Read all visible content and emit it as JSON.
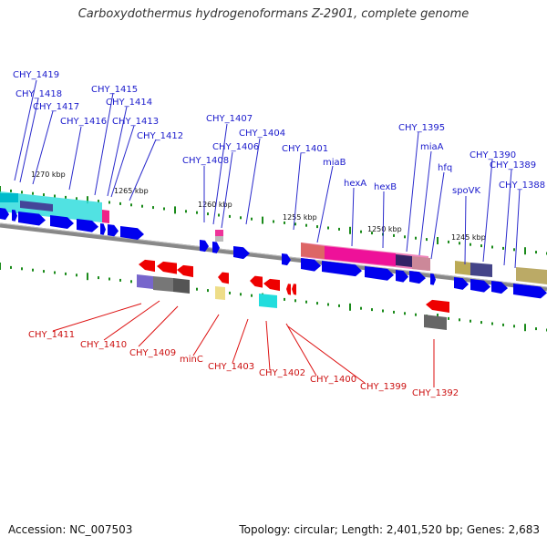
{
  "title": "Carboxydothermus hydrogenoformans Z-2901, complete genome",
  "footer": {
    "accession": "Accession: NC_007503",
    "topology": "Topology: circular; Length: 2,401,520 bp; Genes: 2,683"
  },
  "colors": {
    "forward_gene": "#0000ee",
    "reverse_gene": "#ee0000",
    "forward_label": "#1a1acc",
    "reverse_label": "#cc1111",
    "backbone": "#888888",
    "tick": "#1a8a1a"
  },
  "scale_labels": [
    "1270 kbp",
    "1265 kbp",
    "1260 kbp",
    "1255 kbp",
    "1250 kbp",
    "1245 kbp"
  ],
  "forward_genes": [
    "CHY_1419",
    "CHY_1418",
    "CHY_1417",
    "CHY_1416",
    "CHY_1415",
    "CHY_1414",
    "CHY_1413",
    "CHY_1412",
    "CHY_1407",
    "CHY_1408",
    "CHY_1406",
    "CHY_1404",
    "CHY_1401",
    "miaB",
    "hexA",
    "hexB",
    "CHY_1395",
    "miaA",
    "hfq",
    "spoVK",
    "CHY_1390",
    "CHY_1389",
    "CHY_1388"
  ],
  "reverse_genes": [
    "CHY_1411",
    "CHY_1410",
    "CHY_1409",
    "minC",
    "CHY_1403",
    "CHY_1402",
    "CHY_1400",
    "CHY_1399",
    "CHY_1392"
  ]
}
